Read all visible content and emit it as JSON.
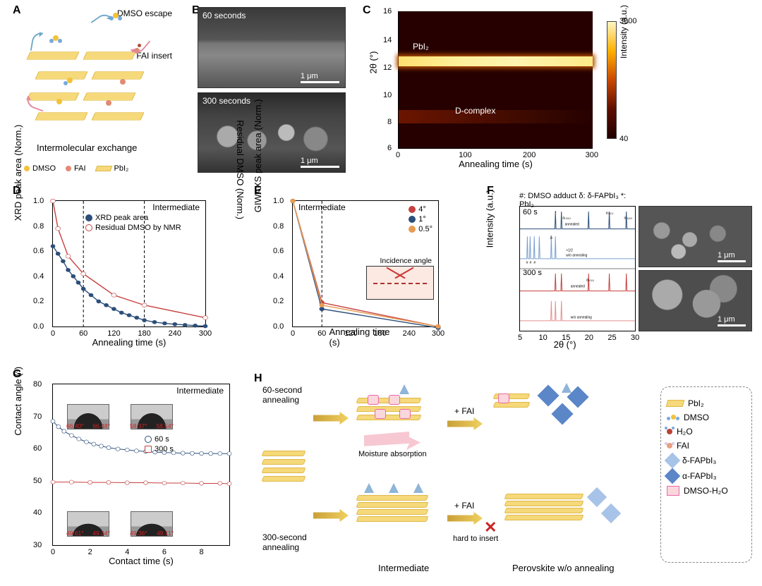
{
  "panels": {
    "A": "A",
    "B": "B",
    "C": "C",
    "D": "D",
    "E": "E",
    "F": "F",
    "G": "G",
    "H": "H"
  },
  "A": {
    "title_top_right": "DMSO escape",
    "title_mid_right": "FAI insert",
    "title_bottom": "Intermolecular exchange",
    "legend": {
      "dmso": "DMSO",
      "fai": "FAI",
      "pbi2": "PbI₂"
    },
    "colors": {
      "sheet": "#f5d97a",
      "sheet_border": "#e0b84a",
      "dmso_S": "#f2c23a",
      "dmso_O": "#78a9e0",
      "fai": "#e08a72",
      "arrow_escape": "#6fa8c9",
      "arrow_insert": "#e08a9f"
    }
  },
  "B": {
    "top_label": "60 seconds",
    "bottom_label": "300 seconds",
    "scalebar": "1 μm"
  },
  "C": {
    "ylabel": "2θ (°)",
    "xlabel": "Annealing time (s)",
    "ylim": [
      6,
      16
    ],
    "ytick_step": 2,
    "xlim": [
      0,
      300
    ],
    "xtick_step": 100,
    "cbar_label": "Intensity (a.u.)",
    "cbar_max": "3000",
    "cbar_min": "40",
    "annot_pbi2": "PbI₂",
    "annot_dcomplex": "D-complex",
    "band_main_y": 12.6,
    "band_sub_y": 9.0,
    "colormap": [
      "#200000",
      "#5e0e00",
      "#c94800",
      "#ffb000",
      "#fff6c4"
    ]
  },
  "D": {
    "title": "Intermediate",
    "ylabel": "XRD peak area (Norm.)",
    "ylabel_right": "Residual DMSO (Norm.)",
    "xlabel": "Annealing time (s)",
    "xlim": [
      0,
      300
    ],
    "xtick_step": 60,
    "ylim": [
      0,
      1.0
    ],
    "ytick_step": 0.2,
    "series": {
      "xrd": {
        "label": "XRD peak area",
        "color": "#2c4e7a",
        "marker": "filled-circle",
        "x": [
          0,
          10,
          20,
          30,
          40,
          50,
          60,
          75,
          90,
          105,
          120,
          135,
          150,
          165,
          180,
          200,
          220,
          240,
          260,
          280,
          300
        ],
        "y": [
          0.64,
          0.58,
          0.52,
          0.45,
          0.4,
          0.35,
          0.3,
          0.25,
          0.2,
          0.17,
          0.14,
          0.11,
          0.09,
          0.07,
          0.05,
          0.035,
          0.025,
          0.018,
          0.012,
          0.007,
          0.003
        ]
      },
      "nmr": {
        "label": "Residual DMSO by NMR",
        "color": "#c64040",
        "marker": "open-circle",
        "x": [
          0,
          10,
          30,
          60,
          120,
          180,
          300
        ],
        "y": [
          1.0,
          0.78,
          0.56,
          0.42,
          0.25,
          0.17,
          0.07
        ]
      }
    },
    "vlines": [
      60,
      180
    ]
  },
  "E": {
    "title": "Intermediate",
    "ylabel": "GIWAXS peak area (Norm.)",
    "xlabel": "Annealing time (s)",
    "xlim": [
      0,
      300
    ],
    "xtick_step": 60,
    "ylim": [
      0,
      1.0
    ],
    "ytick_step": 0.2,
    "inset_label": "Incidence angle",
    "legend_items": [
      "4°",
      "1°",
      "0.5°"
    ],
    "colors": {
      "4°": "#c64040",
      "1°": "#2c4e7a",
      "0.5°": "#e79b52"
    },
    "series": {
      "4°": {
        "x": [
          0,
          60,
          300
        ],
        "y": [
          1.0,
          0.19,
          0.0
        ]
      },
      "1°": {
        "x": [
          0,
          60,
          300
        ],
        "y": [
          1.0,
          0.14,
          -0.01
        ]
      },
      "0.5°": {
        "x": [
          0,
          60,
          300
        ],
        "y": [
          1.0,
          0.17,
          0.0
        ]
      }
    },
    "vlines": [
      60
    ]
  },
  "F": {
    "header": "#: DMSO adduct   δ: δ-FAPbI₃   *: PbI₂",
    "ylabel": "Intensity (a.u.)",
    "xlabel": "2θ (°)",
    "xlim": [
      5,
      30
    ],
    "xtick_step": 5,
    "groups": [
      {
        "time": "60 s",
        "color_an": "#2c4e7a",
        "color_wo": "#7aa0d0",
        "annealed_peaks": [
          12.7,
          14.0,
          19.9,
          24.4,
          28.1
        ],
        "annealed_labels": {
          "12.7": "*",
          "14.0": "α₍₀₀₁₎",
          "19.9": "α₍₀₁₁₎",
          "24.4": "α₍₁₁₁₎",
          "28.1": "α₍₀₀₂₎"
        },
        "wo_peaks": [
          6.6,
          7.2,
          8.1,
          9.2,
          11.8,
          12.7
        ],
        "wo_note": "×1/2\nw/o annealing",
        "wo_marks": {
          "6.6": "#",
          "7.2": "#",
          "8.1": "#",
          "11.8": "δ",
          "12.7": "*"
        },
        "an_note": "annealed"
      },
      {
        "time": "300 s",
        "color_an": "#c64040",
        "color_wo": "#e49090",
        "annealed_peaks": [
          12.7,
          14.0,
          19.9,
          24.4,
          28.1
        ],
        "annealed_labels": {
          "19.9": "α₍₀₁₁₎"
        },
        "wo_peaks": [
          11.8,
          12.7,
          14.0
        ],
        "wo_note": "w/o annealing",
        "an_note": "annealed"
      }
    ],
    "scalebar": "1 μm"
  },
  "G": {
    "ylabel": "Contact angle (°)",
    "xlabel": "Contact time (s)",
    "title": "Intermediate",
    "xlim": [
      0,
      9.5
    ],
    "xtick_step": 2,
    "ylim": [
      30,
      80
    ],
    "ytick_step": 10,
    "series": {
      "60s": {
        "label": "60 s",
        "color": "#2c4e7a",
        "marker": "open-circle",
        "y_start": 68.5,
        "y_end": 58.4,
        "x": [
          0,
          0.3,
          0.6,
          1,
          1.4,
          1.8,
          2.2,
          2.6,
          3,
          3.5,
          4,
          4.5,
          5,
          5.5,
          6,
          6.5,
          7,
          7.5,
          8,
          8.5,
          9,
          9.5
        ],
        "y": [
          68.5,
          66.8,
          65.4,
          64.1,
          63.0,
          62.1,
          61.4,
          60.8,
          60.3,
          59.9,
          59.6,
          59.3,
          59.1,
          58.9,
          58.8,
          58.7,
          58.6,
          58.55,
          58.5,
          58.47,
          58.45,
          58.43
        ]
      },
      "300s": {
        "label": "300 s",
        "color": "#c64040",
        "marker": "open-square",
        "x": [
          0,
          1,
          2,
          3,
          4,
          5,
          6,
          7,
          8,
          9,
          9.5
        ],
        "y": [
          49.6,
          49.6,
          49.5,
          49.5,
          49.4,
          49.4,
          49.3,
          49.3,
          49.2,
          49.2,
          49.1
        ]
      }
    },
    "angle_insets": {
      "top_left": [
        "66.40°",
        "66.48°"
      ],
      "top_right": [
        "58.37°",
        "58.54°"
      ],
      "bot_left": [
        "49.61°",
        "49.34°"
      ],
      "bot_right": [
        "49.36°",
        "49.11°"
      ]
    }
  },
  "H": {
    "row_labels": {
      "top": "60-second\nannealing",
      "bottom": "300-second\nannealing"
    },
    "mid_label": "Moisture absorption",
    "fai_label": "+ FAI",
    "hard_label": "hard to insert",
    "section_intermediate": "Intermediate",
    "section_perovskite": "Perovskite w/o annealing",
    "legend": {
      "pbi2": "PbI₂",
      "dmso": "DMSO",
      "h2o": "H₂O",
      "fai": "FAI",
      "dfapbi3": "δ-FAPbI₃",
      "afapbi3": "α-FAPbI₃",
      "dmsoh2o": "DMSO-H₂O"
    },
    "colors": {
      "sheet": "#f5d97a",
      "arrow": "#d9a83a",
      "up_arrow": "#8fb5d8",
      "delta_poly": "#a8c3e8",
      "alpha_poly": "#5b86c7",
      "dmso_box": "#f9d7db",
      "moisture_arrow": "#f2b4c0"
    }
  }
}
